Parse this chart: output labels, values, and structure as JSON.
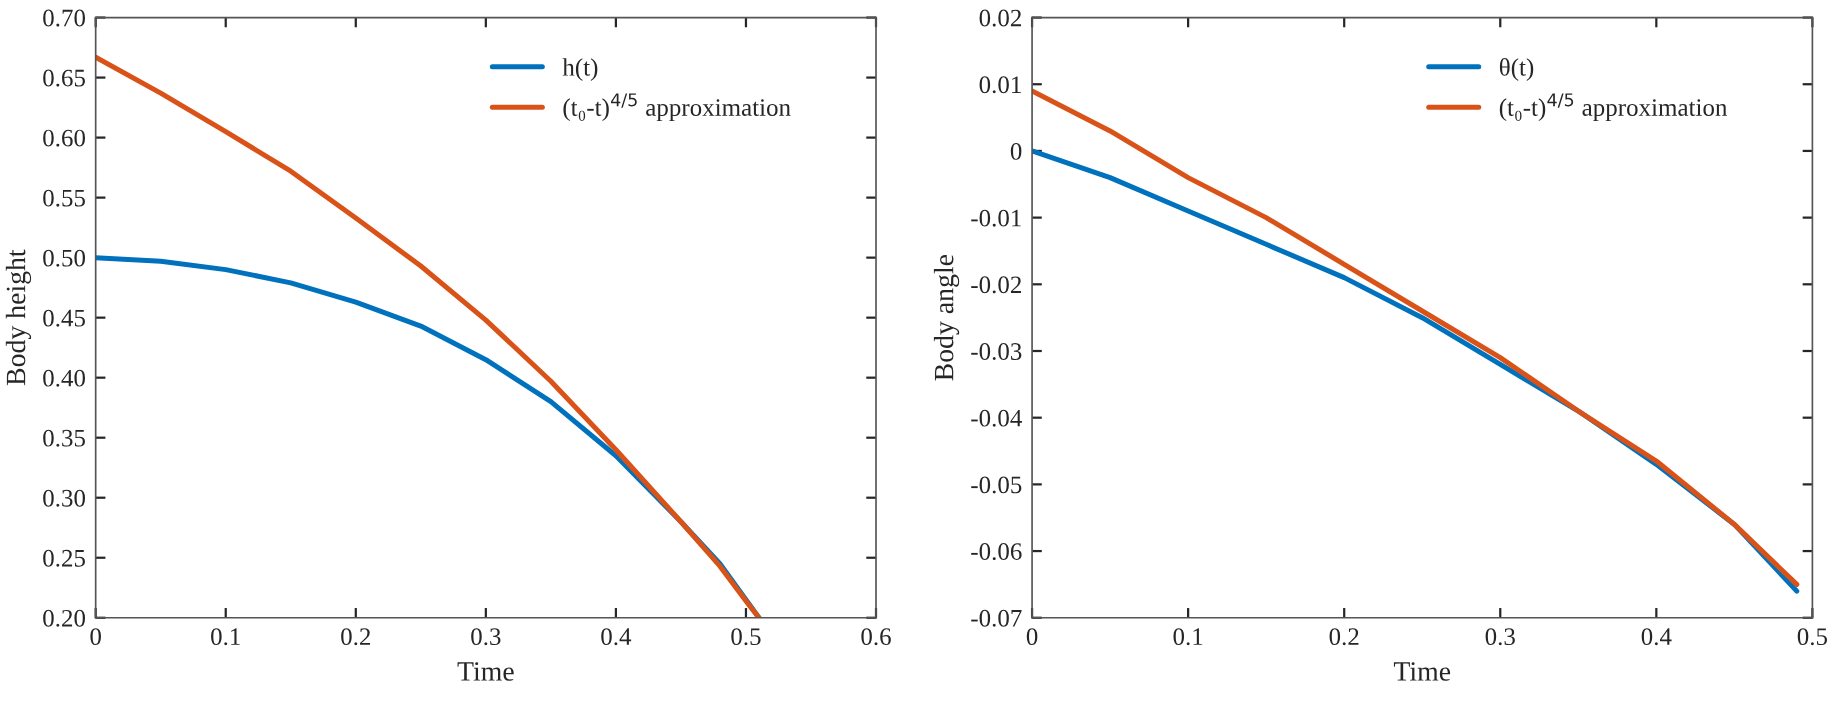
{
  "chart_data": [
    {
      "type": "line",
      "xlabel": "Time",
      "ylabel": "Body height",
      "legend": "top right",
      "grid": false,
      "xlim": [
        0,
        0.6
      ],
      "xticks": [
        0,
        0.1,
        0.2,
        0.3,
        0.4,
        0.5,
        0.6
      ],
      "ylim": [
        0.2,
        0.7
      ],
      "yticks": [
        {
          "value": 0.2,
          "label": "0.20"
        },
        {
          "value": 0.25,
          "label": "0.25"
        },
        {
          "value": 0.3,
          "label": "0.30"
        },
        {
          "value": 0.35,
          "label": "0.35"
        },
        {
          "value": 0.4,
          "label": "0.40"
        },
        {
          "value": 0.45,
          "label": "0.45"
        },
        {
          "value": 0.5,
          "label": "0.50"
        },
        {
          "value": 0.55,
          "label": "0.55"
        },
        {
          "value": 0.6,
          "label": "0.60"
        },
        {
          "value": 0.65,
          "label": "0.65"
        },
        {
          "value": 0.7,
          "label": "0.70"
        }
      ],
      "series": [
        {
          "name": "h(t)",
          "color": "#0072bd",
          "x": [
            0,
            0.05,
            0.1,
            0.15,
            0.2,
            0.25,
            0.3,
            0.35,
            0.4,
            0.45,
            0.48,
            0.5,
            0.51
          ],
          "values": [
            0.5,
            0.497,
            0.49,
            0.479,
            0.463,
            0.443,
            0.415,
            0.38,
            0.335,
            0.28,
            0.245,
            0.215,
            0.2
          ]
        },
        {
          "name": "(t₀-t)$^{4/5}$ approximation",
          "color": "#d95319",
          "x": [
            0,
            0.05,
            0.1,
            0.15,
            0.2,
            0.25,
            0.3,
            0.35,
            0.4,
            0.45,
            0.48,
            0.5,
            0.51
          ],
          "values": [
            0.667,
            0.637,
            0.605,
            0.572,
            0.533,
            0.493,
            0.448,
            0.397,
            0.34,
            0.28,
            0.243,
            0.214,
            0.2
          ]
        }
      ]
    },
    {
      "type": "line",
      "xlabel": "Time",
      "ylabel": "Body angle",
      "legend": "top right",
      "grid": false,
      "xlim": [
        0,
        0.5
      ],
      "xticks": [
        0,
        0.1,
        0.2,
        0.3,
        0.4,
        0.5
      ],
      "ylim": [
        -0.07,
        0.02
      ],
      "yticks": [
        {
          "value": -0.07,
          "label": "-0.07"
        },
        {
          "value": -0.06,
          "label": "-0.06"
        },
        {
          "value": -0.05,
          "label": "-0.05"
        },
        {
          "value": -0.04,
          "label": "-0.04"
        },
        {
          "value": -0.03,
          "label": "-0.03"
        },
        {
          "value": -0.02,
          "label": "-0.02"
        },
        {
          "value": -0.01,
          "label": "-0.01"
        },
        0,
        0.01,
        0.02
      ],
      "series": [
        {
          "name": "θ(t)",
          "color": "#0072bd",
          "x": [
            0,
            0.05,
            0.1,
            0.15,
            0.2,
            0.25,
            0.3,
            0.35,
            0.4,
            0.45,
            0.49
          ],
          "values": [
            0,
            -0.004,
            -0.009,
            -0.014,
            -0.019,
            -0.025,
            -0.032,
            -0.039,
            -0.047,
            -0.056,
            -0.066
          ]
        },
        {
          "name": "(t₀-t)$^{4/5}$ approximation",
          "color": "#d95319",
          "x": [
            0,
            0.05,
            0.1,
            0.15,
            0.2,
            0.25,
            0.3,
            0.35,
            0.4,
            0.45,
            0.49
          ],
          "values": [
            0.009,
            0.003,
            -0.004,
            -0.01,
            -0.017,
            -0.024,
            -0.031,
            -0.039,
            -0.0465,
            -0.056,
            -0.065
          ]
        }
      ]
    }
  ]
}
